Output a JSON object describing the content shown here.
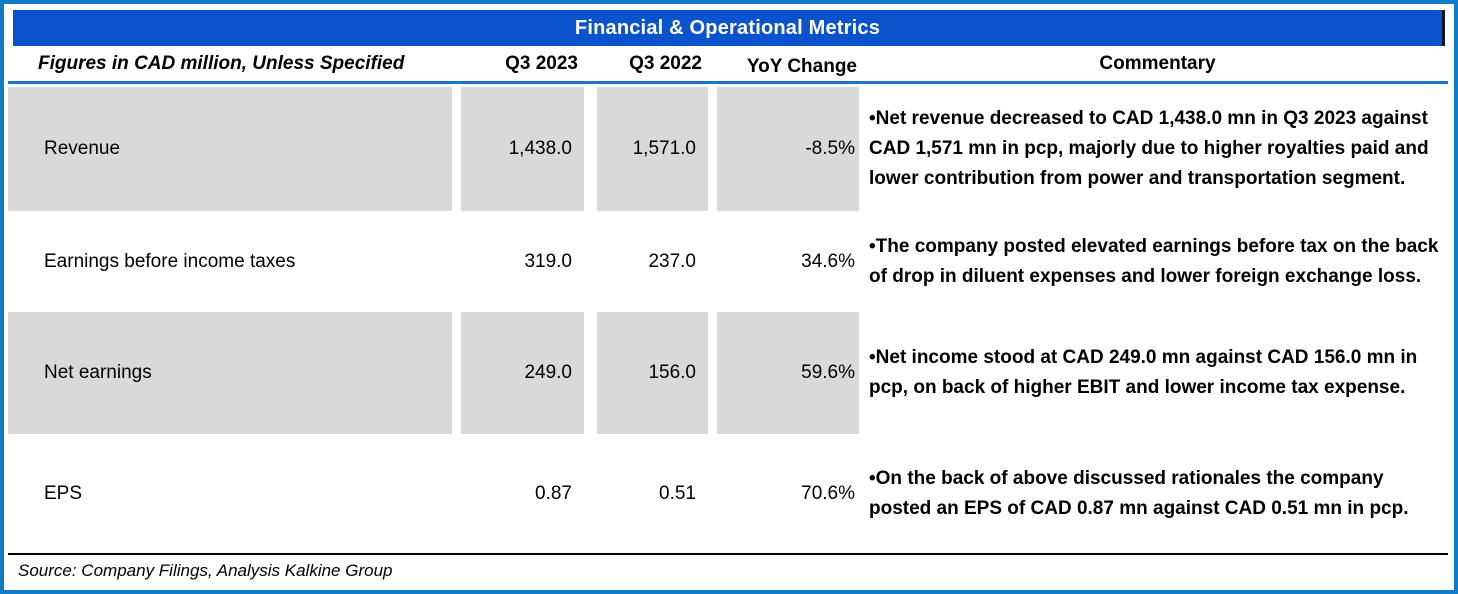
{
  "title": "Financial & Operational Metrics",
  "table": {
    "header": {
      "metric": "Figures in CAD million, Unless Specified",
      "q3_2023": "Q3 2023",
      "q3_2022": "Q3 2022",
      "yoy": "YoY Change",
      "commentary": "Commentary"
    },
    "rows": [
      {
        "metric": "Revenue",
        "q3_2023": "1,438.0",
        "q3_2022": "1,571.0",
        "yoy": "-8.5%",
        "commentary": "•Net revenue decreased to CAD 1,438.0 mn in Q3 2023 against CAD 1,571 mn in pcp, majorly due to higher royalties paid and lower contribution from power and transportation segment."
      },
      {
        "metric": "Earnings before income taxes",
        "q3_2023": "319.0",
        "q3_2022": "237.0",
        "yoy": "34.6%",
        "commentary": "•The company posted elevated earnings before tax on the back of drop in diluent expenses and lower foreign exchange loss."
      },
      {
        "metric": "Net earnings",
        "q3_2023": "249.0",
        "q3_2022": "156.0",
        "yoy": "59.6%",
        "commentary": "•Net income stood at CAD 249.0 mn against CAD 156.0 mn in pcp, on back of higher EBIT and lower income tax expense."
      },
      {
        "metric": "EPS",
        "q3_2023": "0.87",
        "q3_2022": "0.51",
        "yoy": "70.6%",
        "commentary": "•On the back of above discussed rationales the company posted an EPS of CAD 0.87 mn against CAD 0.51 mn in pcp."
      }
    ]
  },
  "source": "Source: Company Filings, Analysis Kalkine Group",
  "colors": {
    "outer_border": "#0F7AC6",
    "title_bg": "#0B53CC",
    "row_shade": "#D9D9D9",
    "header_rule": "#1B74C8",
    "bottom_rule": "#000000",
    "title_text": "#FFFFFF",
    "body_text": "#000000"
  },
  "chart_data": {
    "type": "table",
    "title": "Financial & Operational Metrics",
    "columns": [
      "Figures in CAD million, Unless Specified",
      "Q3 2023",
      "Q3 2022",
      "YoY Change",
      "Commentary"
    ],
    "rows": [
      {
        "metric": "Revenue",
        "q3_2023": 1438.0,
        "q3_2022": 1571.0,
        "yoy_change_pct": -8.5
      },
      {
        "metric": "Earnings before income taxes",
        "q3_2023": 319.0,
        "q3_2022": 237.0,
        "yoy_change_pct": 34.6
      },
      {
        "metric": "Net earnings",
        "q3_2023": 249.0,
        "q3_2022": 156.0,
        "yoy_change_pct": 59.6
      },
      {
        "metric": "EPS",
        "q3_2023": 0.87,
        "q3_2022": 0.51,
        "yoy_change_pct": 70.6
      }
    ],
    "shaded_row_indices": [
      0,
      2
    ],
    "source": "Source: Company Filings, Analysis Kalkine Group"
  }
}
